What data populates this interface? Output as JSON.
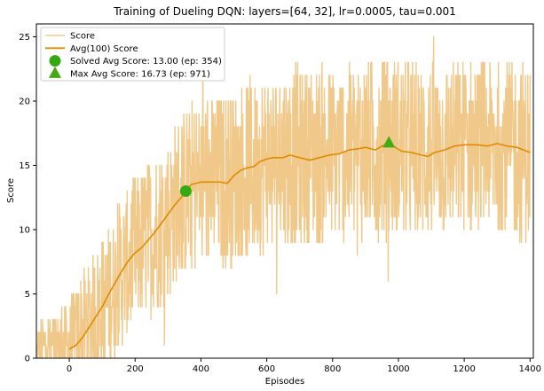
{
  "chart_data": {
    "type": "line",
    "title": "Training of Dueling DQN: layers=[64, 32], lr=0.0005, tau=0.001",
    "xlabel": "Episodes",
    "ylabel": "Score",
    "xlim": [
      -100,
      1410
    ],
    "ylim": [
      0,
      26
    ],
    "x_ticks": [
      0,
      200,
      400,
      600,
      800,
      1000,
      1200,
      1400
    ],
    "y_ticks": [
      0,
      5,
      10,
      15,
      20,
      25
    ],
    "grid": false,
    "legend_position": "upper-left",
    "colors": {
      "score": "#f0c98a",
      "avg": "#e08a00",
      "solved": "#33aa11",
      "max": "#44aa11"
    },
    "legend": [
      {
        "label": "Score",
        "kind": "line",
        "series": "score"
      },
      {
        "label": "Avg(100) Score",
        "kind": "line",
        "series": "avg"
      },
      {
        "label": "Solved Avg Score: 13.00 (ep: 354)",
        "kind": "circle-marker",
        "series": "solved"
      },
      {
        "label": "Max Avg Score: 16.73 (ep: 971)",
        "kind": "triangle-marker",
        "series": "max"
      }
    ],
    "series": [
      {
        "name": "Score",
        "key": "score",
        "x_start": -99,
        "x_end": 1400,
        "envelope": {
          "x": [
            -99,
            0,
            100,
            200,
            300,
            354,
            400,
            500,
            600,
            700,
            800,
            900,
            1000,
            1100,
            1200,
            1300,
            1400
          ],
          "mean": [
            0.8,
            1.0,
            4.0,
            8.2,
            11.0,
            13.0,
            13.7,
            14.0,
            15.4,
            15.8,
            15.9,
            16.3,
            16.4,
            16.0,
            16.5,
            16.5,
            16.0
          ],
          "spread": [
            1.2,
            2.5,
            3.5,
            4.0,
            4.3,
            4.4,
            4.5,
            4.6,
            4.7,
            4.7,
            4.7,
            4.7,
            4.7,
            4.7,
            4.6,
            4.6,
            4.6
          ],
          "min": 0,
          "max": 26
        }
      },
      {
        "name": "Avg(100) Score",
        "key": "avg",
        "points": [
          [
            0,
            0.7
          ],
          [
            20,
            1.0
          ],
          [
            40,
            1.6
          ],
          [
            60,
            2.4
          ],
          [
            80,
            3.2
          ],
          [
            100,
            4.0
          ],
          [
            120,
            5.0
          ],
          [
            140,
            5.9
          ],
          [
            160,
            6.8
          ],
          [
            180,
            7.6
          ],
          [
            200,
            8.2
          ],
          [
            220,
            8.6
          ],
          [
            240,
            9.2
          ],
          [
            260,
            9.8
          ],
          [
            280,
            10.5
          ],
          [
            300,
            11.2
          ],
          [
            320,
            11.9
          ],
          [
            340,
            12.5
          ],
          [
            354,
            13.0
          ],
          [
            370,
            13.5
          ],
          [
            400,
            13.7
          ],
          [
            430,
            13.7
          ],
          [
            460,
            13.7
          ],
          [
            480,
            13.6
          ],
          [
            500,
            14.2
          ],
          [
            520,
            14.6
          ],
          [
            540,
            14.8
          ],
          [
            560,
            14.9
          ],
          [
            580,
            15.3
          ],
          [
            600,
            15.5
          ],
          [
            620,
            15.6
          ],
          [
            650,
            15.6
          ],
          [
            670,
            15.8
          ],
          [
            700,
            15.6
          ],
          [
            730,
            15.4
          ],
          [
            760,
            15.6
          ],
          [
            790,
            15.8
          ],
          [
            820,
            15.9
          ],
          [
            850,
            16.2
          ],
          [
            880,
            16.3
          ],
          [
            900,
            16.4
          ],
          [
            930,
            16.2
          ],
          [
            950,
            16.5
          ],
          [
            971,
            16.73
          ],
          [
            990,
            16.4
          ],
          [
            1010,
            16.1
          ],
          [
            1040,
            16.0
          ],
          [
            1070,
            15.8
          ],
          [
            1090,
            15.7
          ],
          [
            1110,
            16.0
          ],
          [
            1140,
            16.2
          ],
          [
            1170,
            16.5
          ],
          [
            1200,
            16.6
          ],
          [
            1240,
            16.6
          ],
          [
            1270,
            16.5
          ],
          [
            1300,
            16.7
          ],
          [
            1330,
            16.5
          ],
          [
            1360,
            16.4
          ],
          [
            1380,
            16.2
          ],
          [
            1400,
            16.0
          ]
        ]
      }
    ],
    "markers": [
      {
        "key": "solved",
        "shape": "circle",
        "x": 354,
        "y": 13.0
      },
      {
        "key": "max",
        "shape": "triangle",
        "x": 971,
        "y": 16.73
      }
    ]
  }
}
